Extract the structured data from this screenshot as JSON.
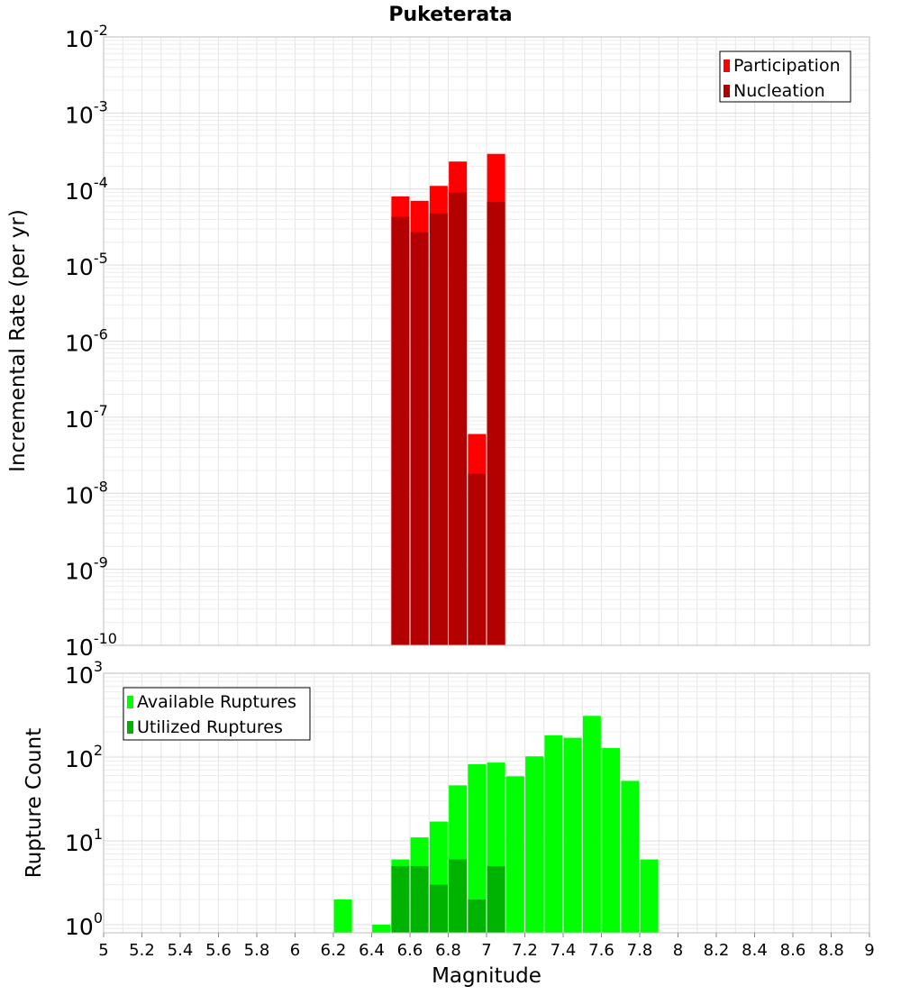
{
  "chart_data": [
    {
      "type": "bar",
      "title": "Puketerata",
      "xlabel": "",
      "ylabel": "Incremental Rate (per yr)",
      "yscale": "log",
      "ylim": [
        1e-10,
        0.01
      ],
      "xlim": [
        5,
        9
      ],
      "y_tick_labels": [
        {
          "base": "10",
          "exp": "-10"
        },
        {
          "base": "10",
          "exp": "-9"
        },
        {
          "base": "10",
          "exp": "-8"
        },
        {
          "base": "10",
          "exp": "-7"
        },
        {
          "base": "10",
          "exp": "-6"
        },
        {
          "base": "10",
          "exp": "-5"
        },
        {
          "base": "10",
          "exp": "-4"
        },
        {
          "base": "10",
          "exp": "-3"
        },
        {
          "base": "10",
          "exp": "-2"
        }
      ],
      "legend": {
        "placement": "top-right"
      },
      "grid": true,
      "series": [
        {
          "name": "Participation",
          "color": "#ff0000",
          "x": [
            6.55,
            6.65,
            6.75,
            6.85,
            6.95,
            7.05
          ],
          "values": [
            8e-05,
            7e-05,
            0.00011,
            0.00023,
            6e-08,
            0.00029
          ]
        },
        {
          "name": "Nucleation",
          "color": "#b30000",
          "x": [
            6.55,
            6.65,
            6.75,
            6.85,
            6.95,
            7.05
          ],
          "values": [
            4.3e-05,
            2.7e-05,
            4.8e-05,
            9e-05,
            1.8e-08,
            6.8e-05
          ]
        }
      ]
    },
    {
      "type": "bar",
      "title": "",
      "xlabel": "Magnitude",
      "ylabel": "Rupture Count",
      "yscale": "log",
      "ylim": [
        0.8,
        1000
      ],
      "xlim": [
        5,
        9
      ],
      "x_tick_labels": [
        "5",
        "5.2",
        "5.4",
        "5.6",
        "5.8",
        "6",
        "6.2",
        "6.4",
        "6.6",
        "6.8",
        "7",
        "7.2",
        "7.4",
        "7.6",
        "7.8",
        "8",
        "8.2",
        "8.4",
        "8.6",
        "8.8",
        "9"
      ],
      "y_tick_labels": [
        {
          "base": "10",
          "exp": "0"
        },
        {
          "base": "10",
          "exp": "1"
        },
        {
          "base": "10",
          "exp": "2"
        },
        {
          "base": "10",
          "exp": "3"
        }
      ],
      "legend": {
        "placement": "top-left"
      },
      "grid": true,
      "series": [
        {
          "name": "Available Ruptures",
          "color": "#00ff00",
          "x": [
            6.25,
            6.45,
            6.55,
            6.65,
            6.75,
            6.85,
            6.95,
            7.05,
            7.15,
            7.25,
            7.35,
            7.45,
            7.55,
            7.65,
            7.75,
            7.85
          ],
          "values": [
            2,
            1,
            6,
            11,
            17,
            46,
            82,
            86,
            59,
            102,
            182,
            170,
            310,
            128,
            52,
            6
          ]
        },
        {
          "name": "Utilized Ruptures",
          "color": "#00b300",
          "x": [
            6.55,
            6.65,
            6.75,
            6.85,
            6.95,
            7.05
          ],
          "values": [
            5,
            5,
            3,
            6,
            2,
            5
          ]
        }
      ]
    }
  ]
}
